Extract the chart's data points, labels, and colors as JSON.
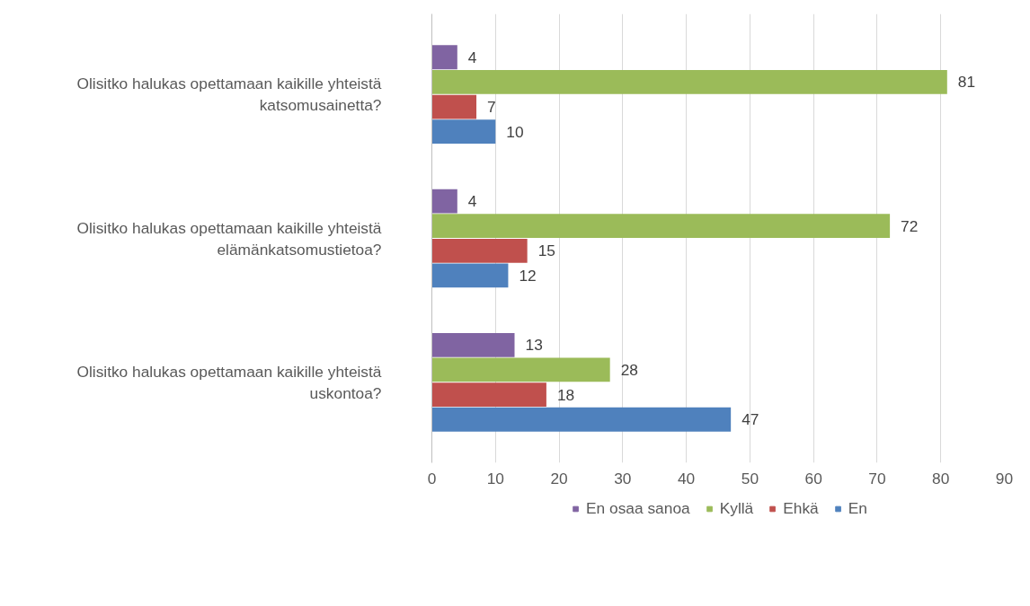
{
  "chart_data": {
    "type": "bar",
    "orientation": "horizontal",
    "categories": [
      "Olisitko halukas opettamaan kaikille yhteistä\nkatsomusainetta?",
      "Olisitko halukas opettamaan kaikille yhteistä\nelämänkatsomustietoa?",
      "Olisitko halukas opettamaan kaikille yhteistä\nuskontoa?"
    ],
    "series": [
      {
        "name": "En osaa sanoa",
        "color": "#8064a2",
        "values": [
          4,
          4,
          13
        ]
      },
      {
        "name": "Kyllä",
        "color": "#9bbb59",
        "values": [
          81,
          72,
          28
        ]
      },
      {
        "name": "Ehkä",
        "color": "#c0504d",
        "values": [
          7,
          15,
          18
        ]
      },
      {
        "name": "En",
        "color": "#4f81bd",
        "values": [
          10,
          12,
          47
        ]
      }
    ],
    "xlim": [
      0,
      90
    ],
    "xticks": [
      0,
      10,
      20,
      30,
      40,
      50,
      60,
      70,
      80,
      90
    ],
    "grid": "x",
    "legend": "bottom",
    "data_labels": true
  }
}
